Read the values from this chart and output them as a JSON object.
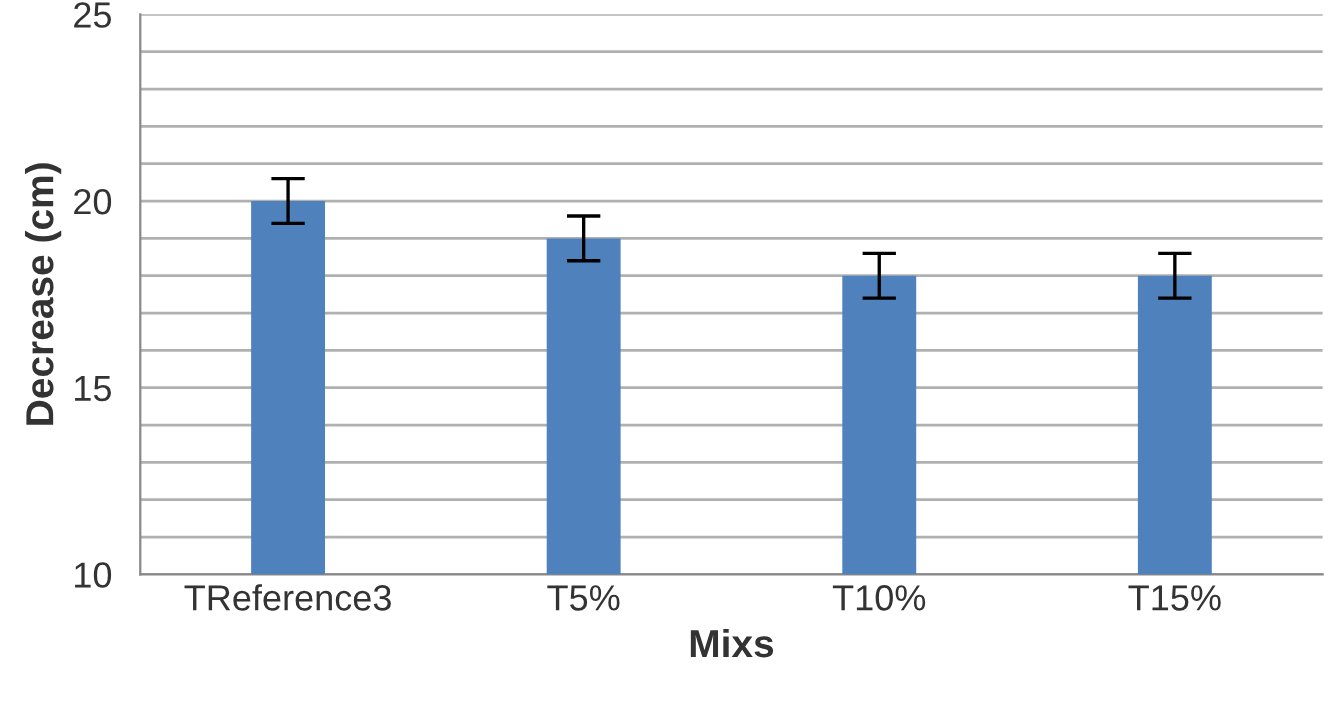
{
  "chart_data": {
    "type": "bar",
    "xlabel": "Mixs",
    "ylabel": "Decrease (cm)",
    "categories": [
      "TReference3",
      "T5%",
      "T10%",
      "T15%"
    ],
    "values": [
      20,
      19,
      18,
      18
    ],
    "errors": [
      0.6,
      0.6,
      0.6,
      0.6
    ],
    "color": "#4f81bd",
    "ylim": [
      10,
      25
    ],
    "yticks": [
      10,
      {
        "value": 11,
        "label": null
      },
      {
        "value": 12,
        "label": null
      },
      {
        "value": 13,
        "label": null
      },
      {
        "value": 14,
        "label": null
      },
      15,
      {
        "value": 16,
        "label": null
      },
      {
        "value": 17,
        "label": null
      },
      {
        "value": 18,
        "label": null
      },
      {
        "value": 19,
        "label": null
      },
      20,
      {
        "value": 21,
        "label": null
      },
      {
        "value": 22,
        "label": null
      },
      {
        "value": 23,
        "label": null
      },
      {
        "value": 24,
        "label": null
      },
      25
    ],
    "grid": "y",
    "legend": false
  }
}
